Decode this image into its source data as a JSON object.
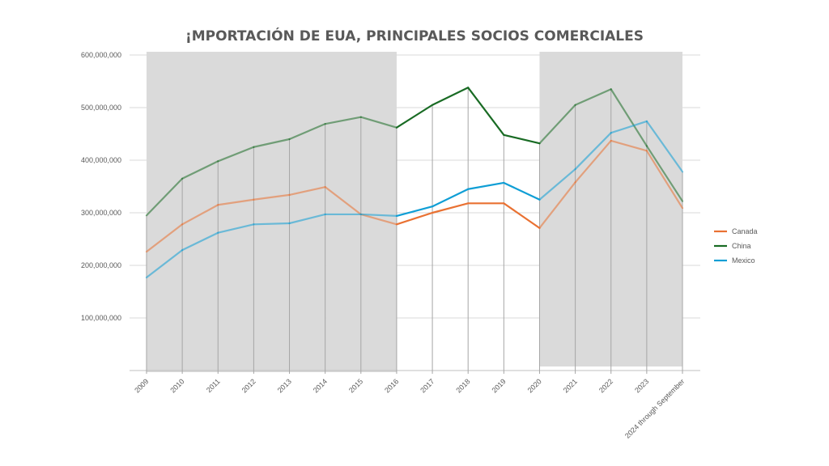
{
  "chart_data": {
    "type": "line",
    "title": "¡MPORTACIÓN DE EUA, PRINCIPALES SOCIOS COMERCIALES",
    "xlabel": "",
    "ylabel": "",
    "categories": [
      "2009",
      "2010",
      "2011",
      "2012",
      "2013",
      "2014",
      "2015",
      "2016",
      "2017",
      "2018",
      "2019",
      "2020",
      "2021",
      "2022",
      "2023",
      "2024 through September"
    ],
    "ylim": [
      0,
      600000000
    ],
    "yticks": [
      100000000,
      200000000,
      300000000,
      400000000,
      500000000,
      600000000
    ],
    "ytick_labels": [
      "100,000,000",
      "200,000,000",
      "300,000,000",
      "400,000,000",
      "500,000,000",
      "600,000,000"
    ],
    "grid": true,
    "legend_position": "right",
    "shaded_ranges": [
      [
        "2009",
        "2016"
      ],
      [
        "2020",
        "2024 through September"
      ]
    ],
    "shade_color": "#DADADA",
    "series": [
      {
        "name": "Canada",
        "color": "#E97132",
        "values": [
          226000000,
          278000000,
          315000000,
          325000000,
          334000000,
          349000000,
          297000000,
          278000000,
          300000000,
          318000000,
          318000000,
          271000000,
          358000000,
          437000000,
          418000000,
          309000000
        ]
      },
      {
        "name": "China",
        "color": "#196B24",
        "values": [
          295000000,
          365000000,
          398000000,
          425000000,
          440000000,
          469000000,
          482000000,
          462000000,
          505000000,
          538000000,
          448000000,
          432000000,
          505000000,
          535000000,
          427000000,
          322000000
        ]
      },
      {
        "name": "Mexico",
        "color": "#0F9ED5",
        "values": [
          177000000,
          229000000,
          262000000,
          278000000,
          280000000,
          297000000,
          297000000,
          294000000,
          312000000,
          345000000,
          357000000,
          325000000,
          383000000,
          452000000,
          474000000,
          378000000
        ]
      }
    ]
  }
}
